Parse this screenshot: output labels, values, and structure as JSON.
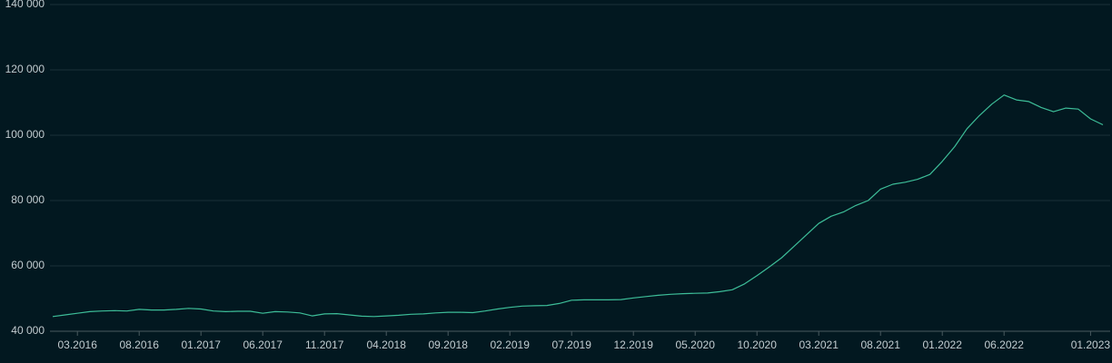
{
  "chart_data": {
    "type": "line",
    "x": [
      "01.2016",
      "02.2016",
      "03.2016",
      "04.2016",
      "05.2016",
      "06.2016",
      "07.2016",
      "08.2016",
      "09.2016",
      "10.2016",
      "11.2016",
      "12.2016",
      "01.2017",
      "02.2017",
      "03.2017",
      "04.2017",
      "05.2017",
      "06.2017",
      "07.2017",
      "08.2017",
      "09.2017",
      "10.2017",
      "11.2017",
      "12.2017",
      "01.2018",
      "02.2018",
      "03.2018",
      "04.2018",
      "05.2018",
      "06.2018",
      "07.2018",
      "08.2018",
      "09.2018",
      "10.2018",
      "11.2018",
      "12.2018",
      "01.2019",
      "02.2019",
      "03.2019",
      "04.2019",
      "05.2019",
      "06.2019",
      "07.2019",
      "08.2019",
      "09.2019",
      "10.2019",
      "11.2019",
      "12.2019",
      "01.2020",
      "02.2020",
      "03.2020",
      "04.2020",
      "05.2020",
      "06.2020",
      "07.2020",
      "08.2020",
      "09.2020",
      "10.2020",
      "11.2020",
      "12.2020",
      "01.2021",
      "02.2021",
      "03.2021",
      "04.2021",
      "05.2021",
      "06.2021",
      "07.2021",
      "08.2021",
      "09.2021",
      "10.2021",
      "11.2021",
      "12.2021",
      "01.2022",
      "02.2022",
      "03.2022",
      "04.2022",
      "05.2022",
      "06.2022",
      "07.2022",
      "08.2022",
      "09.2022",
      "10.2022",
      "11.2022",
      "12.2022",
      "01.2023",
      "02.2023"
    ],
    "series": [
      {
        "color": "#3dbd98",
        "values": [
          44500,
          45000,
          45500,
          46000,
          46200,
          46300,
          46200,
          46700,
          46500,
          46500,
          46700,
          47000,
          46800,
          46200,
          46000,
          46100,
          46100,
          45500,
          46000,
          45900,
          45600,
          44700,
          45300,
          45400,
          45000,
          44600,
          44500,
          44700,
          44900,
          45200,
          45300,
          45600,
          45800,
          45800,
          45700,
          46200,
          46800,
          47300,
          47700,
          47800,
          47900,
          48500,
          49500,
          49600,
          49600,
          49600,
          49700,
          50200,
          50600,
          51000,
          51300,
          51500,
          51600,
          51700,
          52100,
          52700,
          54500,
          57000,
          59700,
          62500,
          66000,
          69500,
          73000,
          75200,
          76500,
          78500,
          80000,
          83500,
          85000,
          85600,
          86500,
          88000,
          92000,
          96500,
          102000,
          106000,
          109500,
          112300,
          110800,
          110300,
          108500,
          107200,
          108300,
          108000,
          105000,
          103200
        ]
      }
    ],
    "xticks": [
      "03.2016",
      "08.2016",
      "01.2017",
      "06.2017",
      "11.2017",
      "04.2018",
      "09.2018",
      "02.2019",
      "07.2019",
      "12.2019",
      "05.2020",
      "10.2020",
      "03.2021",
      "08.2021",
      "01.2022",
      "06.2022",
      "01.2023"
    ],
    "ylim": [
      40000,
      140000
    ],
    "yticks": [
      {
        "value": 40000,
        "label": "40 000"
      },
      {
        "value": 60000,
        "label": "60 000"
      },
      {
        "value": 80000,
        "label": "80 000"
      },
      {
        "value": 100000,
        "label": "100 000"
      },
      {
        "value": 120000,
        "label": "120 000"
      },
      {
        "value": 140000,
        "label": "140 000"
      }
    ],
    "grid": true
  }
}
